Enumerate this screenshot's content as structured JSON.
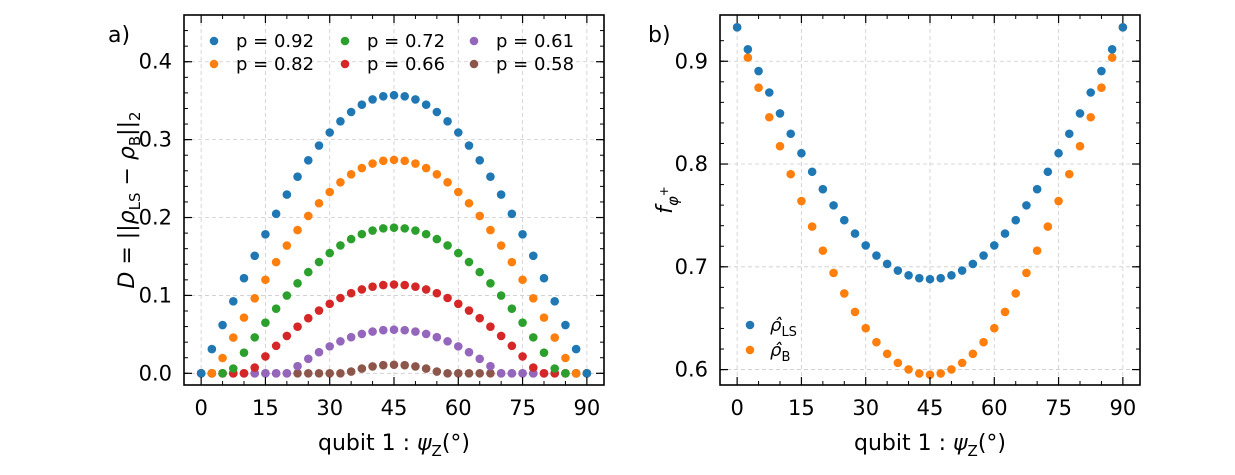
{
  "chart_data": [
    {
      "type": "scatter",
      "panel_label": "a)",
      "xlabel": "qubit 1 :  ψ_Z(°)",
      "ylabel": "D = ||ρ_LS − ρ_B||_2",
      "xlim": [
        -4,
        94
      ],
      "ylim": [
        -0.015,
        0.46
      ],
      "xticks": [
        0,
        15,
        30,
        45,
        60,
        75,
        90
      ],
      "yticks": [
        0.0,
        0.1,
        0.2,
        0.3,
        0.4
      ],
      "ytick_labels": [
        "0.0",
        "0.1",
        "0.2",
        "0.3",
        "0.4"
      ],
      "grid": true,
      "legend_position": "top",
      "legend": [
        "p = 0.92",
        "p = 0.82",
        "p = 0.72",
        "p = 0.66",
        "p = 0.61",
        "p = 0.58"
      ],
      "x": [
        0,
        2.5,
        5,
        7.5,
        10,
        12.5,
        15,
        17.5,
        20,
        22.5,
        25,
        27.5,
        30,
        32.5,
        35,
        37.5,
        40,
        42.5,
        45,
        47.5,
        50,
        52.5,
        55,
        57.5,
        60,
        62.5,
        65,
        67.5,
        70,
        72.5,
        75,
        77.5,
        80,
        82.5,
        85,
        87.5,
        90
      ],
      "series": [
        {
          "name": "p = 0.92",
          "color": "#1f77b4",
          "amplitude": 0.357,
          "threshold": 0
        },
        {
          "name": "p = 0.82",
          "color": "#ff7f0e",
          "amplitude": 0.274,
          "threshold": 0.07
        },
        {
          "name": "p = 0.72",
          "color": "#2ca02c",
          "amplitude": 0.187,
          "threshold": 0.15
        },
        {
          "name": "p = 0.66",
          "color": "#d62728",
          "amplitude": 0.114,
          "threshold": 0.25
        },
        {
          "name": "p = 0.61",
          "color": "#9467bd",
          "amplitude": 0.056,
          "threshold": 0.45
        },
        {
          "name": "p = 0.58",
          "color": "#8c564b",
          "amplitude": 0.011,
          "threshold": 0.75
        }
      ]
    },
    {
      "type": "scatter",
      "panel_label": "b)",
      "xlabel": "qubit 1 :  ψ_Z(°)",
      "ylabel": "f_φ+",
      "xlim": [
        -4,
        94
      ],
      "ylim": [
        0.585,
        0.945
      ],
      "xticks": [
        0,
        15,
        30,
        45,
        60,
        75,
        90
      ],
      "yticks": [
        0.6,
        0.7,
        0.8,
        0.9
      ],
      "ytick_labels": [
        "0.6",
        "0.7",
        "0.8",
        "0.9"
      ],
      "grid": true,
      "legend_position": "bottom-left",
      "legend": [
        "ρ̂_LS",
        "ρ̂_B"
      ],
      "x": [
        0,
        2.5,
        5,
        7.5,
        10,
        12.5,
        15,
        17.5,
        20,
        22.5,
        25,
        27.5,
        30,
        32.5,
        35,
        37.5,
        40,
        42.5,
        45,
        47.5,
        50,
        52.5,
        55,
        57.5,
        60,
        62.5,
        65,
        67.5,
        70,
        72.5,
        75,
        77.5,
        80,
        82.5,
        85,
        87.5,
        90
      ],
      "series": [
        {
          "name": "ρ̂_LS",
          "color": "#1f77b4",
          "top": 0.933,
          "bottom": 0.688
        },
        {
          "name": "ρ̂_B",
          "color": "#ff7f0e",
          "top": 0.933,
          "bottom": 0.595
        }
      ]
    }
  ]
}
